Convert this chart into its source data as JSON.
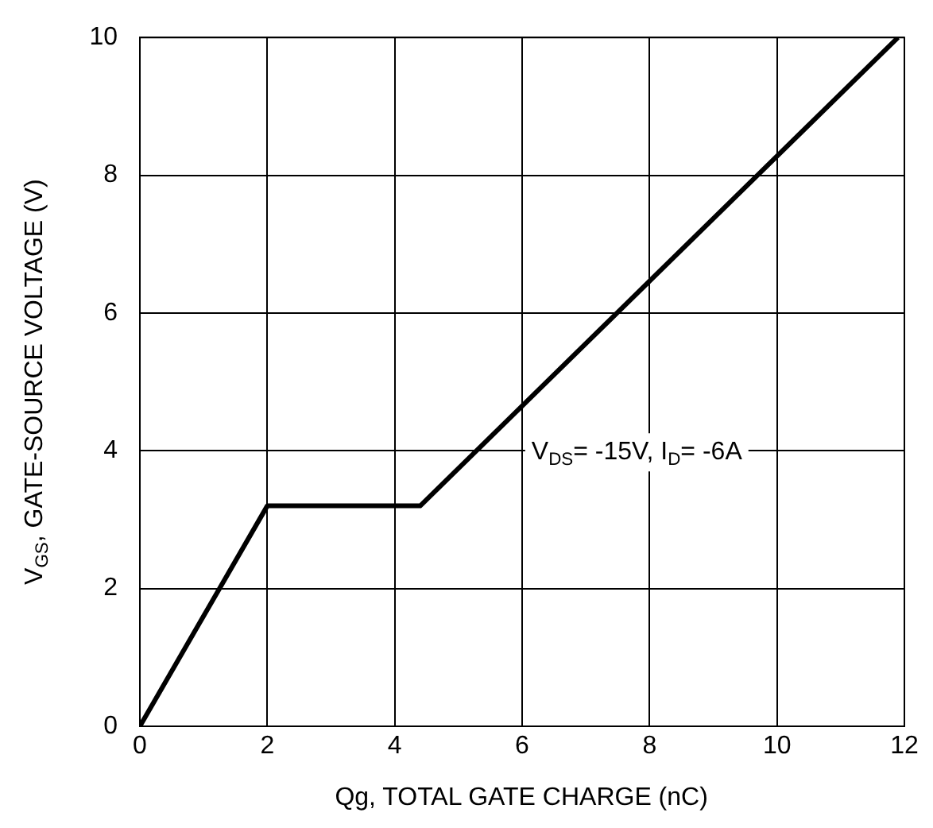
{
  "chart_data": {
    "type": "line",
    "xlabel": "Qg, TOTAL GATE CHARGE (nC)",
    "ylabel": "V$_{GS}$, GATE-SOURCE VOLTAGE (V)",
    "x": [
      0,
      2,
      4.4,
      11.9
    ],
    "series": [
      {
        "color": "#000000",
        "values": [
          0,
          3.2,
          3.2,
          10
        ]
      }
    ],
    "xlim": [
      0,
      12
    ],
    "xticks": [
      0,
      2,
      4,
      6,
      8,
      10,
      12
    ],
    "ylim": [
      0,
      10
    ],
    "yticks": [
      0,
      2,
      4,
      6,
      8,
      10
    ],
    "grid": true,
    "legend": false,
    "marker": "none",
    "line_style": "solid",
    "annotations": [
      "V$_{DS}$= -15V, I$_{D}$= -6A"
    ]
  }
}
